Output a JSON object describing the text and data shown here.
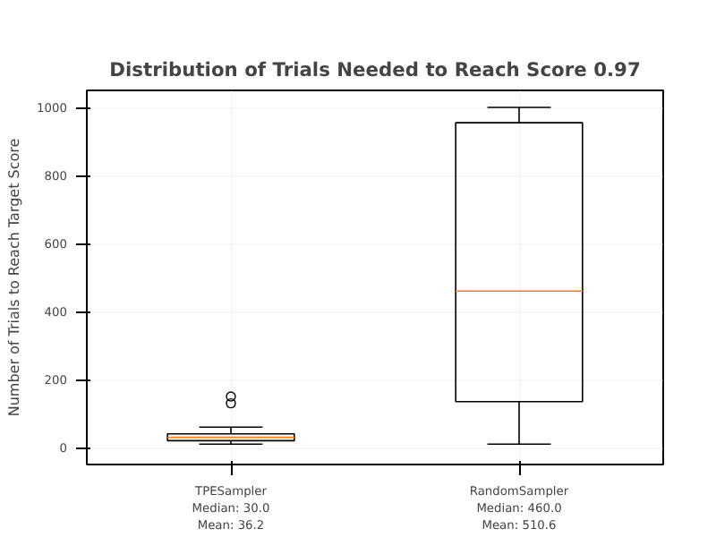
{
  "chart_data": {
    "type": "box",
    "title": "Distribution of Trials Needed to Reach Score 0.97",
    "ylabel": "Number of Trials to Reach Target Score",
    "categories": [
      "TPESampler\nMedian: 30.0\nMean: 36.2",
      "RandomSampler\nMedian: 460.0\nMean: 510.6"
    ],
    "boxes": [
      {
        "low": 10,
        "q1": 20,
        "median": 30,
        "q3": 40,
        "high": 60,
        "outliers": [
          130,
          150
        ]
      },
      {
        "low": 10,
        "q1": 135,
        "median": 460,
        "q3": 955,
        "high": 1000
      }
    ],
    "ylim": [
      -50,
      1050
    ],
    "yticks": [
      0,
      200,
      400,
      600,
      800,
      1000
    ],
    "grid": true
  }
}
